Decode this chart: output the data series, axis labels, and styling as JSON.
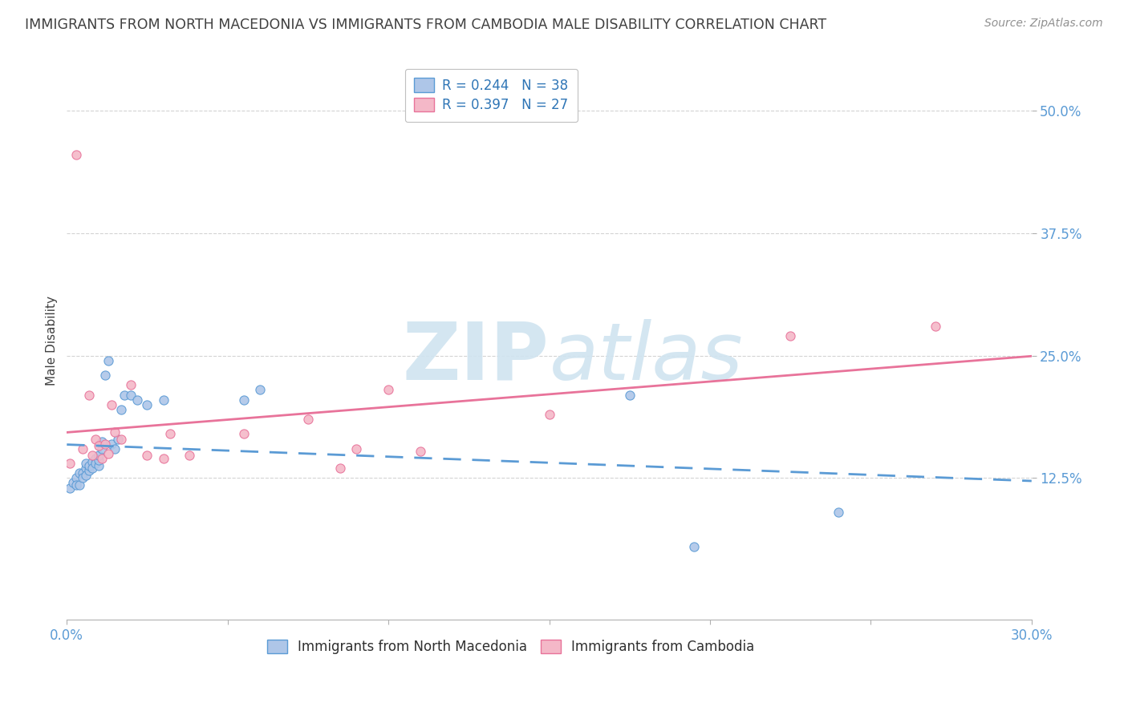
{
  "title": "IMMIGRANTS FROM NORTH MACEDONIA VS IMMIGRANTS FROM CAMBODIA MALE DISABILITY CORRELATION CHART",
  "source": "Source: ZipAtlas.com",
  "ylabel": "Male Disability",
  "xlim": [
    0.0,
    0.3
  ],
  "ylim": [
    -0.02,
    0.55
  ],
  "yticks": [
    0.125,
    0.25,
    0.375,
    0.5
  ],
  "ytick_labels": [
    "12.5%",
    "25.0%",
    "37.5%",
    "50.0%"
  ],
  "xticks": [
    0.0,
    0.05,
    0.1,
    0.15,
    0.2,
    0.25,
    0.3
  ],
  "blue_R": 0.244,
  "blue_N": 38,
  "pink_R": 0.397,
  "pink_N": 27,
  "blue_color": "#aec6e8",
  "pink_color": "#f4b8c8",
  "blue_line_color": "#5b9bd5",
  "pink_line_color": "#e8739a",
  "legend_text_color": "#2e75b6",
  "title_color": "#404040",
  "watermark_color": "#d0e4f0",
  "blue_scatter_x": [
    0.001,
    0.002,
    0.003,
    0.003,
    0.004,
    0.004,
    0.005,
    0.005,
    0.006,
    0.006,
    0.006,
    0.007,
    0.007,
    0.008,
    0.008,
    0.009,
    0.009,
    0.01,
    0.01,
    0.01,
    0.011,
    0.011,
    0.012,
    0.013,
    0.014,
    0.015,
    0.016,
    0.017,
    0.018,
    0.02,
    0.022,
    0.025,
    0.03,
    0.055,
    0.06,
    0.175,
    0.195,
    0.24
  ],
  "blue_scatter_y": [
    0.115,
    0.12,
    0.125,
    0.118,
    0.13,
    0.118,
    0.13,
    0.125,
    0.135,
    0.128,
    0.14,
    0.133,
    0.138,
    0.142,
    0.135,
    0.145,
    0.14,
    0.138,
    0.143,
    0.148,
    0.155,
    0.162,
    0.23,
    0.245,
    0.16,
    0.155,
    0.165,
    0.195,
    0.21,
    0.21,
    0.205,
    0.2,
    0.205,
    0.205,
    0.215,
    0.21,
    0.055,
    0.09
  ],
  "pink_scatter_x": [
    0.001,
    0.003,
    0.005,
    0.007,
    0.008,
    0.009,
    0.01,
    0.011,
    0.012,
    0.013,
    0.014,
    0.015,
    0.017,
    0.02,
    0.025,
    0.03,
    0.032,
    0.038,
    0.055,
    0.075,
    0.085,
    0.09,
    0.1,
    0.11,
    0.15,
    0.225,
    0.27
  ],
  "pink_scatter_y": [
    0.14,
    0.455,
    0.155,
    0.21,
    0.148,
    0.165,
    0.158,
    0.145,
    0.16,
    0.15,
    0.2,
    0.172,
    0.165,
    0.22,
    0.148,
    0.145,
    0.17,
    0.148,
    0.17,
    0.185,
    0.135,
    0.155,
    0.215,
    0.152,
    0.19,
    0.27,
    0.28
  ]
}
